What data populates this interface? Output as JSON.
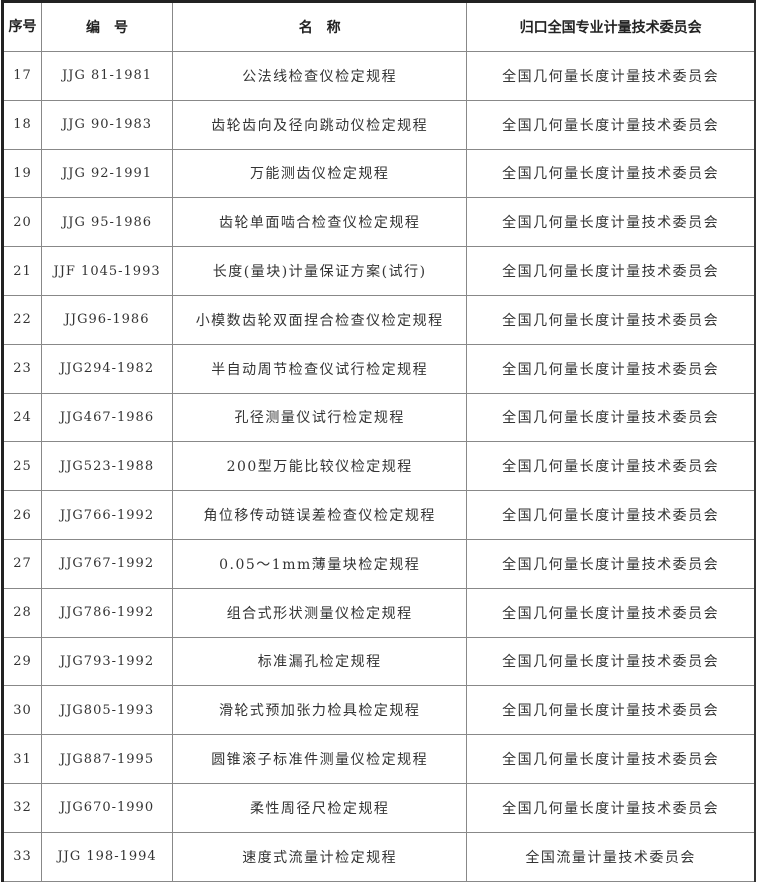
{
  "header": {
    "seq": "序号",
    "code": "编　号",
    "name": "名　称",
    "committee": "归口全国专业计量技术委员会"
  },
  "rows": [
    {
      "seq": "17",
      "code": "JJG 81-1981",
      "name": "公法线检查仪检定规程",
      "committee": "全国几何量长度计量技术委员会"
    },
    {
      "seq": "18",
      "code": "JJG 90-1983",
      "name": "齿轮齿向及径向跳动仪检定规程",
      "committee": "全国几何量长度计量技术委员会"
    },
    {
      "seq": "19",
      "code": "JJG 92-1991",
      "name": "万能测齿仪检定规程",
      "committee": "全国几何量长度计量技术委员会"
    },
    {
      "seq": "20",
      "code": "JJG 95-1986",
      "name": "齿轮单面啮合检查仪检定规程",
      "committee": "全国几何量长度计量技术委员会"
    },
    {
      "seq": "21",
      "code": "JJF 1045-1993",
      "name": "长度(量块)计量保证方案(试行)",
      "committee": "全国几何量长度计量技术委员会"
    },
    {
      "seq": "22",
      "code": "JJG96-1986",
      "name": "小模数齿轮双面捏合检查仪检定规程",
      "committee": "全国几何量长度计量技术委员会"
    },
    {
      "seq": "23",
      "code": "JJG294-1982",
      "name": "半自动周节检查仪试行检定规程",
      "committee": "全国几何量长度计量技术委员会"
    },
    {
      "seq": "24",
      "code": "JJG467-1986",
      "name": "孔径测量仪试行检定规程",
      "committee": "全国几何量长度计量技术委员会"
    },
    {
      "seq": "25",
      "code": "JJG523-1988",
      "name": "200型万能比较仪检定规程",
      "committee": "全国几何量长度计量技术委员会"
    },
    {
      "seq": "26",
      "code": "JJG766-1992",
      "name": "角位移传动链误差检查仪检定规程",
      "committee": "全国几何量长度计量技术委员会"
    },
    {
      "seq": "27",
      "code": "JJG767-1992",
      "name": "0.05～1mm薄量块检定规程",
      "committee": "全国几何量长度计量技术委员会"
    },
    {
      "seq": "28",
      "code": "JJG786-1992",
      "name": "组合式形状测量仪检定规程",
      "committee": "全国几何量长度计量技术委员会"
    },
    {
      "seq": "29",
      "code": "JJG793-1992",
      "name": "标准漏孔检定规程",
      "committee": "全国几何量长度计量技术委员会"
    },
    {
      "seq": "30",
      "code": "JJG805-1993",
      "name": "滑轮式预加张力检具检定规程",
      "committee": "全国几何量长度计量技术委员会"
    },
    {
      "seq": "31",
      "code": "JJG887-1995",
      "name": "圆锥滚子标准件测量仪检定规程",
      "committee": "全国几何量长度计量技术委员会"
    },
    {
      "seq": "32",
      "code": "JJG670-1990",
      "name": "柔性周径尺检定规程",
      "committee": "全国几何量长度计量技术委员会"
    },
    {
      "seq": "33",
      "code": "JJG 198-1994",
      "name": "速度式流量计检定规程",
      "committee": "全国流量计量技术委员会"
    }
  ]
}
